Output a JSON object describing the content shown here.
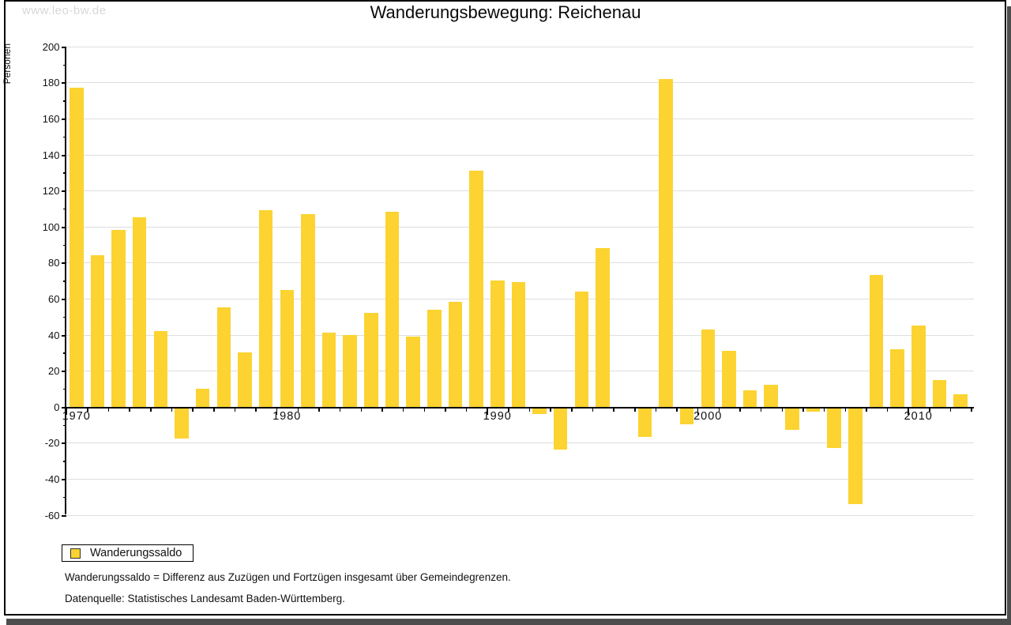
{
  "watermark": "www.leo-bw.de",
  "footnotes": [
    "Wanderungssaldo = Differenz aus Zuzügen und Fortzügen insgesamt über Gemeindegrenzen.",
    "Datenquelle: Statistisches Landesamt Baden-Württemberg."
  ],
  "colors": {
    "bar": "#fcd330",
    "grid": "#dedede",
    "axis": "#000000",
    "watermark": "#d8d8d8",
    "shadow": "#4d4d4d"
  },
  "chart_data": {
    "type": "bar",
    "title": "Wanderungsbewegung: Reichenau",
    "ylabel": "Personen",
    "xlabel": "",
    "legend_label": "Wanderungssaldo",
    "legend_position": "bottom-left",
    "grid": true,
    "ylim": [
      -60,
      200
    ],
    "ytick_step": 20,
    "ytick_minor_step": 10,
    "xtick_labels": [
      "1970",
      "1980",
      "1990",
      "2000",
      "2010"
    ],
    "years": [
      1970,
      1971,
      1972,
      1973,
      1974,
      1975,
      1976,
      1977,
      1978,
      1979,
      1980,
      1981,
      1982,
      1983,
      1984,
      1985,
      1986,
      1987,
      1988,
      1989,
      1990,
      1991,
      1992,
      1993,
      1994,
      1995,
      1996,
      1997,
      1998,
      1999,
      2000,
      2001,
      2002,
      2003,
      2004,
      2005,
      2006,
      2007,
      2008,
      2009,
      2010,
      2011,
      2012
    ],
    "values": [
      177,
      84,
      98,
      105,
      42,
      -17,
      10,
      55,
      30,
      109,
      65,
      107,
      41,
      40,
      52,
      108,
      39,
      54,
      58,
      131,
      70,
      69,
      -3,
      -23,
      64,
      88,
      0,
      -16,
      182,
      -9,
      43,
      31,
      9,
      12,
      -12,
      -2,
      -22,
      -53,
      73,
      32,
      45,
      15,
      7
    ]
  }
}
